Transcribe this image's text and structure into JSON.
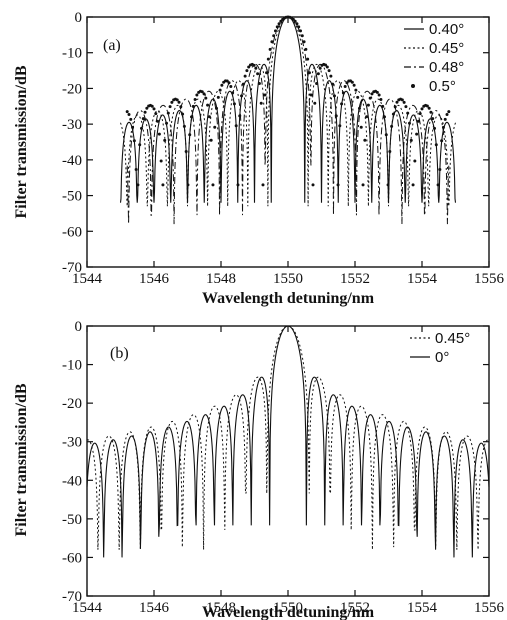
{
  "chart_data": [
    {
      "type": "line",
      "panel_label": "(a)",
      "xlabel": "Wavelength detuning/nm",
      "ylabel": "Filter transmission/dB",
      "xlim": [
        1544,
        1556
      ],
      "ylim": [
        -70,
        0
      ],
      "x_ticks": [
        1544,
        1546,
        1548,
        1550,
        1552,
        1554,
        1556
      ],
      "y_ticks": [
        0,
        -10,
        -20,
        -30,
        -40,
        -50,
        -60,
        -70
      ],
      "grid": false,
      "legend_position": "top-right",
      "series": [
        {
          "name": "0.40°",
          "style": "solid",
          "width": 0.5,
          "halfspan": 5.0,
          "sidelobe_peak": -24,
          "null_floor": -52
        },
        {
          "name": "0.45°",
          "style": "dotted",
          "width": 0.6,
          "halfspan": 5.0,
          "sidelobe_peak": -19,
          "null_floor": -53
        },
        {
          "name": "0.48°",
          "style": "dashdot",
          "width": 0.68,
          "halfspan": 4.8,
          "sidelobe_peak": -16,
          "null_floor": -58
        },
        {
          "name": "0.5°",
          "style": "points",
          "width": 0.75,
          "halfspan": 4.8,
          "sidelobe_peak": -14,
          "null_floor": -55
        }
      ]
    },
    {
      "type": "line",
      "panel_label": "(b)",
      "xlabel": "Wavelength detuning/nm",
      "ylabel": "Filter transmission/dB",
      "xlim": [
        1544,
        1556
      ],
      "ylim": [
        -70,
        0
      ],
      "x_ticks": [
        1544,
        1546,
        1548,
        1550,
        1552,
        1554,
        1556
      ],
      "y_ticks": [
        0,
        -10,
        -20,
        -30,
        -40,
        -50,
        -60,
        -70
      ],
      "grid": false,
      "legend_position": "top-right",
      "series": [
        {
          "name": "0.45°",
          "style": "dotted",
          "width": 0.63,
          "halfspan": 6.0,
          "sidelobe_peak": -27,
          "first_sidelobe": -17,
          "null_floor": -58
        },
        {
          "name": "0°",
          "style": "solid",
          "width": 0.55,
          "halfspan": 6.0,
          "sidelobe_peak": -17,
          "first_sidelobe": -13,
          "null_floor": -60
        }
      ]
    }
  ]
}
